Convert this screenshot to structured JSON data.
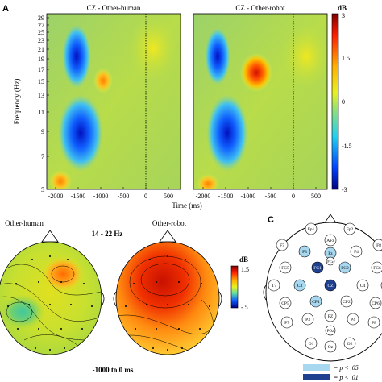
{
  "panels": {
    "a": {
      "letter": "A",
      "left_title": "CZ - Other-human",
      "right_title": "CZ - Other-robot",
      "y_axis_label": "Frequency (Hz)",
      "x_axis_label": "Time (ms)",
      "y_ticks": [
        "29",
        "27",
        "25",
        "23",
        "21",
        "19",
        "17",
        "15",
        "13",
        "11",
        "9",
        "7",
        "5"
      ],
      "x_ticks": [
        "-2000",
        "-1500",
        "-1000",
        "-500",
        "0",
        "500"
      ],
      "colorbar": {
        "unit": "dB",
        "ticks": [
          "3",
          "1.5",
          "0",
          "-1.5",
          "-3"
        ]
      }
    },
    "b": {
      "left_label": "Other-human",
      "right_label": "Other-robot",
      "band": "14 - 22 Hz",
      "window": "-1000 to 0 ms",
      "colorbar": {
        "unit": "dB",
        "ticks": [
          "1.5",
          "-.5"
        ]
      }
    },
    "c": {
      "letter": "C",
      "electrodes": [
        {
          "name": "Fp1"
        },
        {
          "name": "Fp2"
        },
        {
          "name": "F7"
        },
        {
          "name": "F3"
        },
        {
          "name": "AFz"
        },
        {
          "name": "Fz"
        },
        {
          "name": "F4"
        },
        {
          "name": "F8"
        },
        {
          "name": "FC5"
        },
        {
          "name": "FC1"
        },
        {
          "name": "FCz"
        },
        {
          "name": "FC2"
        },
        {
          "name": "FC6"
        },
        {
          "name": "T7"
        },
        {
          "name": "C3"
        },
        {
          "name": "CZ"
        },
        {
          "name": "C4"
        },
        {
          "name": "T8"
        },
        {
          "name": "CP5"
        },
        {
          "name": "CP1"
        },
        {
          "name": "CP2"
        },
        {
          "name": "CP6"
        },
        {
          "name": "P7"
        },
        {
          "name": "P3"
        },
        {
          "name": "PZ"
        },
        {
          "name": "P4"
        },
        {
          "name": "P8"
        },
        {
          "name": "POz"
        },
        {
          "name": "O1"
        },
        {
          "name": "Oz"
        },
        {
          "name": "O2"
        }
      ],
      "legend": [
        {
          "label": "= p < .05",
          "color": "#a8d8f0"
        },
        {
          "label": "= p < .01",
          "color": "#1f3f8f"
        }
      ]
    }
  }
}
